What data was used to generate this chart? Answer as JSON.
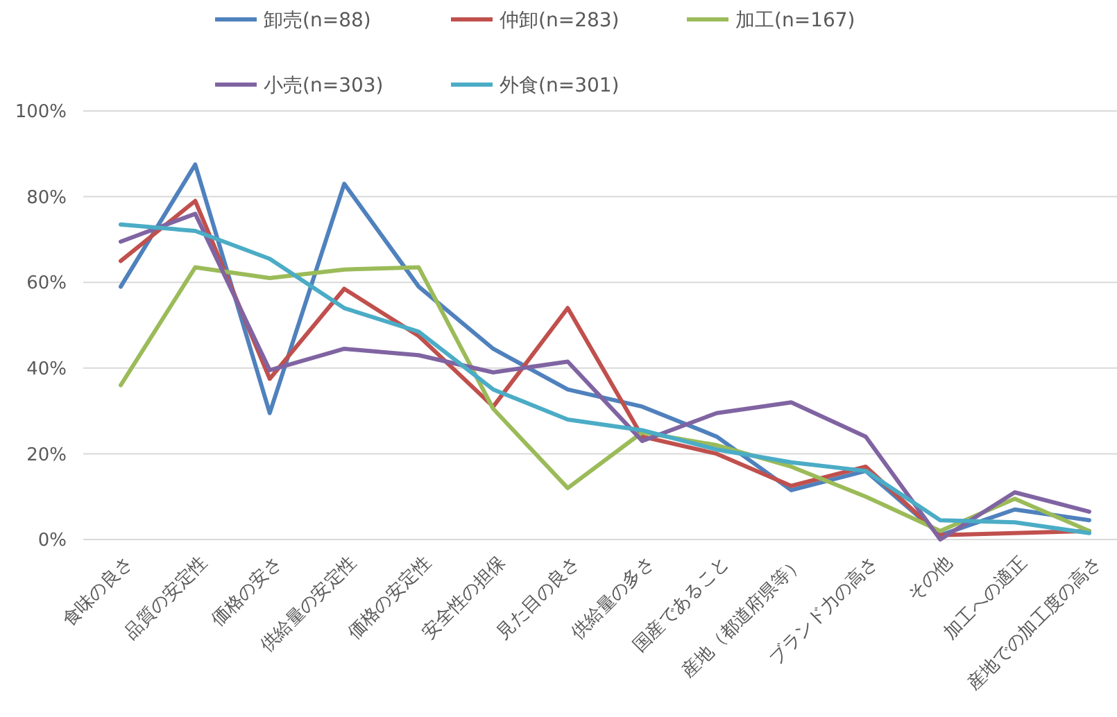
{
  "chart_data": {
    "type": "line",
    "categories": [
      "食味の良さ",
      "品質の安定性",
      "価格の安さ",
      "供給量の安定性",
      "価格の安定性",
      "安全性の担保",
      "見た目の良さ",
      "供給量の多さ",
      "国産であること",
      "産地（都道府県等）",
      "ブランド力の高さ",
      "その他",
      "加工への適正",
      "産地での加工度の高さ"
    ],
    "series": [
      {
        "name": "卸売(n=88)",
        "color": "#4f81bd",
        "values": [
          59,
          87.5,
          29.5,
          83,
          59,
          44.5,
          35,
          31,
          24,
          11.5,
          16,
          1,
          7,
          4.5
        ]
      },
      {
        "name": "仲卸(n=283)",
        "color": "#c0504d",
        "values": [
          65,
          79,
          37.5,
          58.5,
          47.5,
          31,
          54,
          24,
          20,
          12.5,
          17,
          1,
          1.5,
          2
        ]
      },
      {
        "name": "加工(n=167)",
        "color": "#9bbb59",
        "values": [
          36,
          63.5,
          61,
          63,
          63.5,
          30.5,
          12,
          25,
          22,
          17,
          10,
          2,
          9.5,
          2
        ]
      },
      {
        "name": "小売(n=303)",
        "color": "#8064a2",
        "values": [
          69.5,
          76,
          39.5,
          44.5,
          43,
          39,
          41.5,
          23,
          29.5,
          32,
          24,
          0,
          11,
          6.5
        ]
      },
      {
        "name": "外食(n=301)",
        "color": "#4bacc6",
        "values": [
          73.5,
          72,
          65.5,
          54,
          48.5,
          35,
          28,
          25.5,
          21,
          18,
          16,
          4.5,
          4,
          1.5
        ]
      }
    ],
    "ylim": [
      0,
      100
    ],
    "yticks": [
      {
        "value": 0,
        "label": "0%"
      },
      {
        "value": 20,
        "label": "20%"
      },
      {
        "value": 40,
        "label": "40%"
      },
      {
        "value": 60,
        "label": "60%"
      },
      {
        "value": 80,
        "label": "80%"
      },
      {
        "value": 100,
        "label": "100%"
      }
    ],
    "grid": "y",
    "legend": "top",
    "marker": "none",
    "line_style": "solid"
  }
}
